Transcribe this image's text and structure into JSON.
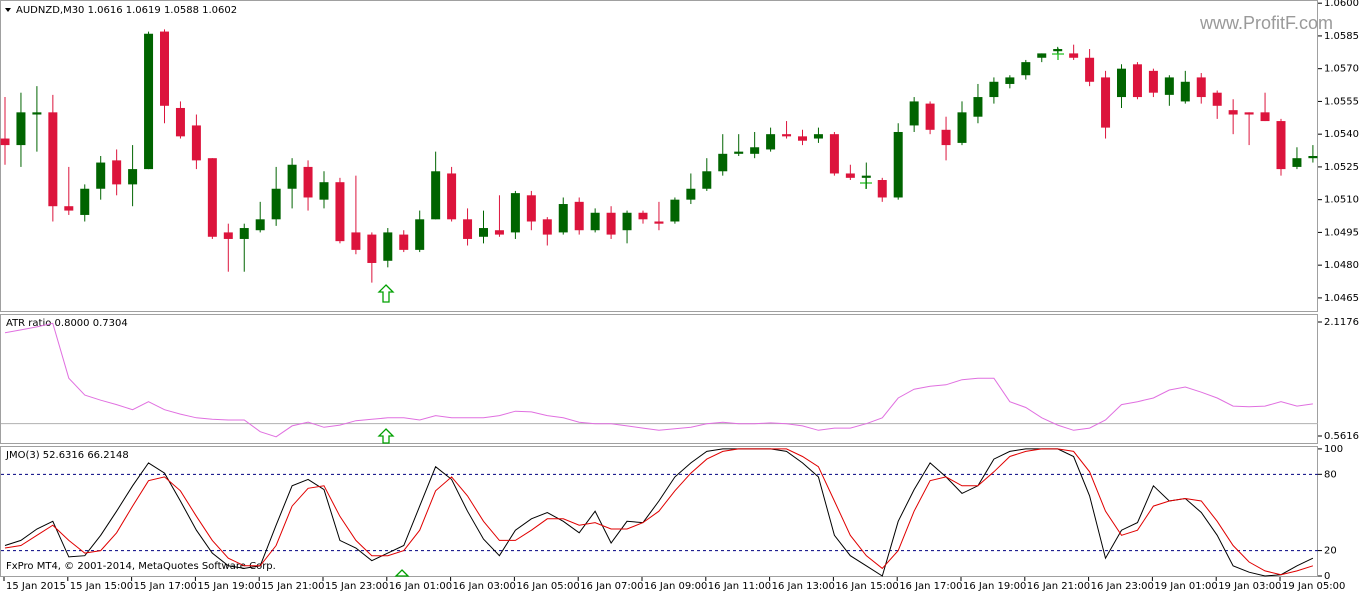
{
  "watermark": "www.ProfitF.com",
  "copyright": "FxPro MT4, © 2001-2014, MetaQuotes Software Corp.",
  "chart_data": [
    {
      "type": "candlestick",
      "title": "AUDNZD,M30  1.0616 1.0619 1.0588 1.0602",
      "up_color": "#006400",
      "down_color": "#dc143c",
      "categories": [
        "15 Jan 2015",
        null,
        null,
        null,
        "15 Jan 15:00",
        null,
        null,
        null,
        "15 Jan 17:00",
        null,
        null,
        null,
        "15 Jan 19:00",
        null,
        null,
        null,
        "15 Jan 21:00",
        null,
        null,
        null,
        "15 Jan 23:00",
        null,
        null,
        null,
        "16 Jan 01:00",
        null,
        null,
        null,
        "16 Jan 03:00",
        null,
        null,
        null,
        "16 Jan 05:00",
        null,
        null,
        null,
        "16 Jan 07:00",
        null,
        null,
        null,
        "16 Jan 09:00",
        null,
        null,
        null,
        "16 Jan 11:00",
        null,
        null,
        null,
        "16 Jan 13:00",
        null,
        null,
        null,
        "16 Jan 15:00",
        null,
        null,
        null,
        "16 Jan 17:00",
        null,
        null,
        null,
        "16 Jan 19:00",
        null,
        null,
        null,
        "16 Jan 21:00",
        null,
        null,
        null,
        "16 Jan 23:00",
        null,
        null,
        null,
        "19 Jan 01:00",
        null,
        null,
        null,
        "19 Jan 03:00",
        null,
        null,
        null,
        "19 Jan 05:00",
        null,
        null
      ],
      "open": [
        1.0538,
        1.0535,
        1.0549,
        1.055,
        1.0507,
        1.0503,
        1.0515,
        1.0528,
        1.0517,
        1.0524,
        1.0587,
        1.0552,
        1.0544,
        1.0529,
        1.0495,
        1.0492,
        1.0496,
        1.0501,
        1.0515,
        1.0525,
        1.051,
        1.0518,
        1.0495,
        1.0494,
        1.0482,
        1.0494,
        1.0487,
        1.0501,
        1.0522,
        1.0501,
        1.0493,
        1.0496,
        1.0495,
        1.0512,
        1.0501,
        1.0495,
        1.0509,
        1.0496,
        1.0504,
        1.0496,
        1.0504,
        1.05,
        1.05,
        1.051,
        1.0515,
        1.0523,
        1.0531,
        1.0531,
        1.0533,
        1.054,
        1.0539,
        1.0538,
        1.054,
        1.0522,
        1.052,
        1.0519,
        1.0511,
        1.0544,
        1.0554,
        1.0542,
        1.0536,
        1.0548,
        1.0557,
        1.0563,
        1.0567,
        1.0575,
        1.0578,
        1.0577,
        1.0575,
        1.0566,
        1.0557,
        1.0572,
        1.0569,
        1.0558,
        1.0555,
        1.0566,
        1.0559,
        1.0551,
        1.055,
        1.055,
        1.0546,
        1.0525,
        1.0529
      ],
      "high": [
        1.0557,
        1.0559,
        1.0562,
        1.0558,
        1.0525,
        1.0517,
        1.053,
        1.0533,
        1.0535,
        1.0587,
        1.0588,
        1.0555,
        1.0549,
        1.0529,
        1.0499,
        1.0499,
        1.0509,
        1.0525,
        1.0529,
        1.0528,
        1.0523,
        1.052,
        1.0521,
        1.0495,
        1.0497,
        1.0496,
        1.0505,
        1.0532,
        1.0525,
        1.0506,
        1.0505,
        1.0512,
        1.0514,
        1.0514,
        1.0502,
        1.0511,
        1.0511,
        1.0506,
        1.0507,
        1.0505,
        1.0505,
        1.0509,
        1.0511,
        1.0522,
        1.0529,
        1.054,
        1.054,
        1.0541,
        1.0543,
        1.0546,
        1.0542,
        1.0543,
        1.0541,
        1.0526,
        1.0527,
        1.052,
        1.0545,
        1.0557,
        1.0555,
        1.0548,
        1.0555,
        1.0563,
        1.0566,
        1.0567,
        1.0574,
        1.0577,
        1.058,
        1.0581,
        1.0579,
        1.0569,
        1.0572,
        1.0573,
        1.057,
        1.0567,
        1.0569,
        1.0568,
        1.056,
        1.0556,
        1.055,
        1.0559,
        1.0547,
        1.0534,
        1.0535
      ],
      "low": [
        1.0526,
        1.0525,
        1.0532,
        1.05,
        1.0503,
        1.05,
        1.051,
        1.0512,
        1.0507,
        1.0524,
        1.0545,
        1.0538,
        1.0524,
        1.0492,
        1.0477,
        1.0477,
        1.0495,
        1.0498,
        1.0506,
        1.0505,
        1.0506,
        1.049,
        1.0485,
        1.0472,
        1.0479,
        1.0486,
        1.0486,
        1.0501,
        1.05,
        1.0489,
        1.049,
        1.0493,
        1.0492,
        1.0496,
        1.0489,
        1.0494,
        1.0494,
        1.0495,
        1.0492,
        1.049,
        1.0499,
        1.0496,
        1.0499,
        1.0508,
        1.0514,
        1.0521,
        1.053,
        1.0529,
        1.0532,
        1.0538,
        1.0535,
        1.0536,
        1.0521,
        1.0519,
        1.0515,
        1.0509,
        1.051,
        1.0541,
        1.054,
        1.0528,
        1.0535,
        1.0545,
        1.0554,
        1.0561,
        1.0565,
        1.0573,
        1.0577,
        1.0574,
        1.0562,
        1.0538,
        1.0552,
        1.0556,
        1.0557,
        1.0553,
        1.0554,
        1.0554,
        1.0547,
        1.054,
        1.0535,
        1.0546,
        1.0521,
        1.0524,
        1.0527
      ],
      "close": [
        1.0535,
        1.055,
        1.055,
        1.0507,
        1.0505,
        1.0515,
        1.0527,
        1.0517,
        1.0524,
        1.0586,
        1.0553,
        1.0539,
        1.0528,
        1.0493,
        1.0492,
        1.0497,
        1.0501,
        1.0515,
        1.0526,
        1.0511,
        1.0518,
        1.0491,
        1.0487,
        1.0481,
        1.0495,
        1.0487,
        1.0501,
        1.0523,
        1.0501,
        1.0492,
        1.0497,
        1.0494,
        1.0513,
        1.05,
        1.0494,
        1.0508,
        1.0496,
        1.0504,
        1.0494,
        1.0504,
        1.0501,
        1.0499,
        1.051,
        1.0515,
        1.0523,
        1.0531,
        1.0532,
        1.0534,
        1.054,
        1.0539,
        1.0537,
        1.054,
        1.0522,
        1.052,
        1.0521,
        1.0511,
        1.0541,
        1.0555,
        1.0542,
        1.0535,
        1.055,
        1.0557,
        1.0564,
        1.0566,
        1.0573,
        1.0577,
        1.0579,
        1.0575,
        1.0564,
        1.0543,
        1.057,
        1.0557,
        1.0559,
        1.0566,
        1.0564,
        1.0557,
        1.0553,
        1.0549,
        1.0549,
        1.0546,
        1.0524,
        1.0529,
        1.053
      ],
      "ylim": [
        1.0459,
        1.0601
      ],
      "yticks": [
        {
          "value": 1.06,
          "label": "1.0600"
        },
        {
          "value": 1.0585,
          "label": "1.0585"
        },
        {
          "value": 1.057,
          "label": "1.0570"
        },
        {
          "value": 1.0555,
          "label": "1.0555"
        },
        {
          "value": 1.054,
          "label": "1.0540"
        },
        {
          "value": 1.0525,
          "label": "1.0525"
        },
        {
          "value": 1.051,
          "label": "1.0510"
        },
        {
          "value": 1.0495,
          "label": "1.0495"
        },
        {
          "value": 1.048,
          "label": "1.0480"
        },
        {
          "value": 1.0465,
          "label": "1.0465"
        }
      ]
    },
    {
      "type": "line",
      "title": "ATR ratio 0.8000 0.7304",
      "color": "#e070e0",
      "values": [
        1.97,
        2.01,
        2.05,
        2.1,
        1.35,
        1.12,
        1.05,
        0.99,
        0.92,
        1.03,
        0.92,
        0.86,
        0.81,
        0.79,
        0.78,
        0.78,
        0.62,
        0.55,
        0.7,
        0.75,
        0.68,
        0.71,
        0.77,
        0.79,
        0.81,
        0.81,
        0.78,
        0.84,
        0.81,
        0.81,
        0.81,
        0.84,
        0.9,
        0.89,
        0.84,
        0.81,
        0.75,
        0.73,
        0.73,
        0.7,
        0.67,
        0.64,
        0.66,
        0.68,
        0.73,
        0.75,
        0.73,
        0.73,
        0.74,
        0.73,
        0.7,
        0.64,
        0.67,
        0.67,
        0.73,
        0.81,
        1.08,
        1.2,
        1.24,
        1.26,
        1.33,
        1.35,
        1.35,
        1.03,
        0.95,
        0.81,
        0.71,
        0.64,
        0.67,
        0.78,
        0.99,
        1.03,
        1.08,
        1.19,
        1.23,
        1.16,
        1.08,
        0.97,
        0.96,
        0.97,
        1.03,
        0.97,
        1.0
      ],
      "levels": [
        0.73
      ],
      "level_color": "#b0b0b0",
      "ylim": [
        0.466,
        2.213
      ],
      "yticks": [
        2.1176,
        0.5616
      ]
    },
    {
      "type": "line",
      "title": "JMO(3) 52.6316 66.2148",
      "series": [
        {
          "color": "#000000",
          "values": [
            24,
            28,
            37,
            43,
            15,
            16,
            32,
            51,
            71,
            89,
            81,
            59,
            36,
            18,
            8,
            6,
            8,
            40,
            71,
            76,
            68,
            28,
            22,
            12,
            18,
            24,
            55,
            86,
            76,
            51,
            29,
            16,
            36,
            45,
            50,
            43,
            34,
            51,
            26,
            43,
            42,
            59,
            78,
            89,
            98,
            100,
            100,
            100,
            100,
            98,
            89,
            78,
            32,
            16,
            8,
            0,
            43,
            68,
            89,
            78,
            65,
            71,
            92,
            98,
            100,
            100,
            100,
            94,
            63,
            14,
            36,
            42,
            71,
            59,
            61,
            50,
            32,
            8,
            3,
            0,
            1,
            8,
            14
          ]
        },
        {
          "color": "#e00000",
          "values": [
            22,
            24,
            32,
            40,
            28,
            18,
            20,
            34,
            55,
            75,
            78,
            67,
            47,
            28,
            14,
            8,
            8,
            24,
            55,
            69,
            71,
            47,
            28,
            16,
            16,
            20,
            36,
            67,
            78,
            63,
            43,
            28,
            28,
            36,
            45,
            45,
            40,
            42,
            37,
            37,
            42,
            51,
            67,
            81,
            92,
            98,
            100,
            100,
            100,
            100,
            94,
            86,
            59,
            32,
            16,
            6,
            20,
            51,
            75,
            78,
            71,
            71,
            82,
            94,
            98,
            100,
            100,
            98,
            82,
            51,
            32,
            36,
            55,
            59,
            61,
            59,
            43,
            24,
            11,
            4,
            1,
            4,
            8
          ]
        }
      ],
      "levels": [
        20,
        80
      ],
      "level_color": "#000080",
      "ylim": [
        0,
        101.5
      ],
      "yticks": [
        100,
        80,
        20,
        0
      ]
    }
  ]
}
